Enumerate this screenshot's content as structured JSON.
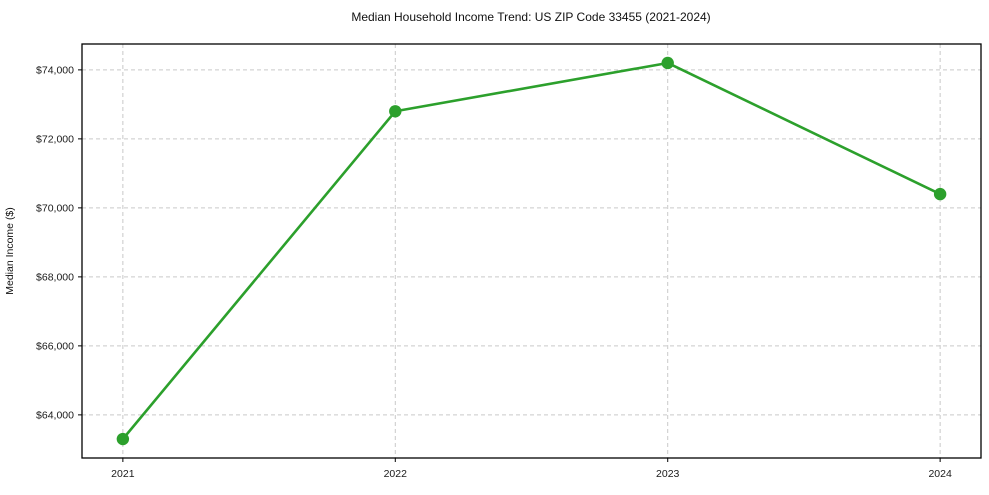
{
  "chart_data": {
    "type": "line",
    "title": "Median Household Income Trend: US ZIP Code 33455 (2021-2024)",
    "ylabel": "Median Income ($)",
    "xlabel": "",
    "x": [
      2021,
      2022,
      2023,
      2024
    ],
    "values": [
      63300,
      72800,
      74200,
      70400
    ],
    "x_tick_values": [
      2021,
      2022,
      2023,
      2024
    ],
    "x_tick_labels": [
      "2021",
      "2022",
      "2023",
      "2024"
    ],
    "y_tick_values": [
      64000,
      66000,
      68000,
      70000,
      72000,
      74000
    ],
    "y_tick_labels": [
      "$64,000",
      "$66,000",
      "$68,000",
      "$70,000",
      "$72,000",
      "$74,000"
    ],
    "xlim": [
      2020.85,
      2024.15
    ],
    "ylim": [
      62750,
      74750
    ],
    "grid": "dashed-both-axes",
    "legend": "none",
    "line_color": "#2ca02c",
    "marker": "circle",
    "grid_color": "#c9c9c9",
    "axis_color": "#000000",
    "text_color": "#1a1a1a",
    "background": "#ffffff"
  }
}
